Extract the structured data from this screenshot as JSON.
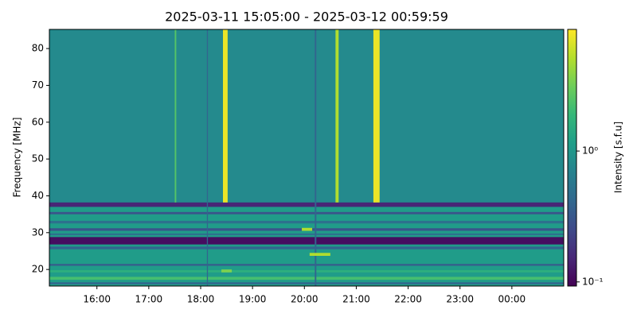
{
  "chart_data": {
    "type": "heatmap",
    "title": "2025-03-11 15:05:00 - 2025-03-12 00:59:59",
    "ylabel": "Frequency [MHz]",
    "colorbar_label": "Intensity [s.f.u]",
    "xlim": [
      15.0833,
      25.0
    ],
    "xticks": [
      {
        "value": 16,
        "label": "16:00"
      },
      {
        "value": 17,
        "label": "17:00"
      },
      {
        "value": 18,
        "label": "18:00"
      },
      {
        "value": 19,
        "label": "19:00"
      },
      {
        "value": 20,
        "label": "20:00"
      },
      {
        "value": 21,
        "label": "21:00"
      },
      {
        "value": 22,
        "label": "22:00"
      },
      {
        "value": 23,
        "label": "23:00"
      },
      {
        "value": 24,
        "label": "00:00"
      }
    ],
    "ylim": [
      15.5,
      85.2
    ],
    "yticks": [
      20,
      30,
      40,
      50,
      60,
      70,
      80
    ],
    "clim": [
      0.093,
      8.5
    ],
    "cticks": [
      {
        "value": 0.1,
        "label": "10⁻¹"
      },
      {
        "value": 1,
        "label": "10⁰"
      }
    ],
    "log_color": true,
    "colormap": "viridis",
    "background": 0.8,
    "bands": [
      {
        "freq": [
          15.5,
          38
        ],
        "intensity": 1.1
      },
      {
        "freq": [
          37,
          38.2
        ],
        "intensity": 0.15
      },
      {
        "freq": [
          35,
          35.6
        ],
        "intensity": 0.3
      },
      {
        "freq": [
          32.5,
          33.2
        ],
        "intensity": 0.5
      },
      {
        "freq": [
          30.5,
          31.2
        ],
        "intensity": 0.3
      },
      {
        "freq": [
          29.3,
          29.8
        ],
        "intensity": 0.5
      },
      {
        "freq": [
          26.8,
          28.8
        ],
        "intensity": 0.11
      },
      {
        "freq": [
          25.5,
          26.2
        ],
        "intensity": 0.4
      },
      {
        "freq": [
          21,
          21.5
        ],
        "intensity": 0.35
      },
      {
        "freq": [
          19.2,
          19.8
        ],
        "intensity": 1.6
      },
      {
        "freq": [
          17.2,
          18
        ],
        "intensity": 2.2
      },
      {
        "freq": [
          16,
          16.5
        ],
        "intensity": 0.4
      }
    ],
    "bursts": [
      {
        "time": [
          18.43,
          18.52
        ],
        "freq": [
          38.2,
          85.2
        ],
        "intensity": 7.5
      },
      {
        "time": [
          21.33,
          21.45
        ],
        "freq": [
          38.2,
          85.2
        ],
        "intensity": 7.5
      },
      {
        "time": [
          20.6,
          20.66
        ],
        "freq": [
          38.2,
          85.2
        ],
        "intensity": 5
      },
      {
        "time": [
          17.5,
          17.53
        ],
        "freq": [
          38.2,
          85.2
        ],
        "intensity": 2.5
      },
      {
        "time": [
          18.12,
          18.14
        ],
        "freq": [
          15.5,
          85.2
        ],
        "intensity": 0.4
      },
      {
        "time": [
          20.2,
          20.23
        ],
        "freq": [
          15.5,
          85.2
        ],
        "intensity": 0.4
      },
      {
        "time": [
          19.95,
          20.15
        ],
        "freq": [
          30.5,
          31.3
        ],
        "intensity": 5
      },
      {
        "time": [
          20.1,
          20.5
        ],
        "freq": [
          23.7,
          24.5
        ],
        "intensity": 5
      },
      {
        "time": [
          18.4,
          18.6
        ],
        "freq": [
          19.2,
          20
        ],
        "intensity": 3.5
      }
    ]
  }
}
